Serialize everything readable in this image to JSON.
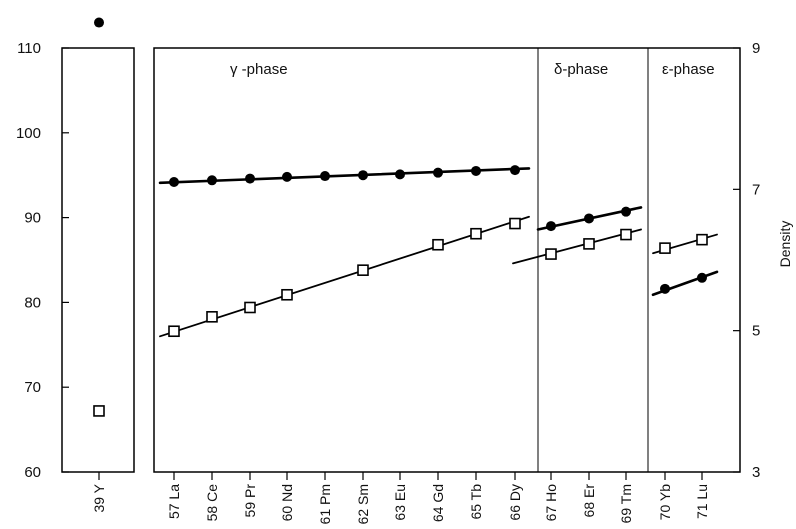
{
  "chart_data": {
    "type": "scatter",
    "left_axis": {
      "ticks": [
        60,
        70,
        80,
        90,
        100,
        110
      ],
      "ylim": [
        60,
        110
      ]
    },
    "right_axis": {
      "label": "Density",
      "ticks": [
        3,
        5,
        7,
        9
      ],
      "ylim": [
        3,
        9
      ]
    },
    "categories": [
      "39 Y",
      "57 La",
      "58 Ce",
      "59 Pr",
      "60 Nd",
      "61 Pm",
      "62 Sm",
      "63 Eu",
      "64 Gd",
      "65 Tb",
      "66 Dy",
      "67 Ho",
      "68 Er",
      "69 Tm",
      "70 Yb",
      "71 Lu"
    ],
    "phases": [
      "γ -phase",
      "δ-phase",
      "ε-phase"
    ],
    "series": [
      {
        "marker": "filled-circle",
        "points": [
          {
            "x": "39 Y",
            "y": 113
          },
          {
            "x": "57 La",
            "y": 94.2
          },
          {
            "x": "58 Ce",
            "y": 94.4
          },
          {
            "x": "59 Pr",
            "y": 94.6
          },
          {
            "x": "60 Nd",
            "y": 94.8
          },
          {
            "x": "61 Pm",
            "y": 94.9
          },
          {
            "x": "62 Sm",
            "y": 95.0
          },
          {
            "x": "63 Eu",
            "y": 95.1
          },
          {
            "x": "64 Gd",
            "y": 95.3
          },
          {
            "x": "65 Tb",
            "y": 95.5
          },
          {
            "x": "66 Dy",
            "y": 95.6
          },
          {
            "x": "67 Ho",
            "y": 89.0
          },
          {
            "x": "68 Er",
            "y": 89.9
          },
          {
            "x": "69 Tm",
            "y": 90.7
          },
          {
            "x": "70 Yb",
            "y": 81.6
          },
          {
            "x": "71 Lu",
            "y": 82.9
          }
        ]
      },
      {
        "marker": "open-square",
        "points": [
          {
            "x": "39 Y",
            "y": 67.2
          },
          {
            "x": "57 La",
            "y": 76.6
          },
          {
            "x": "58 Ce",
            "y": 78.3
          },
          {
            "x": "59 Pr",
            "y": 79.4
          },
          {
            "x": "60 Nd",
            "y": 80.9
          },
          {
            "x": "62 Sm",
            "y": 83.8
          },
          {
            "x": "64 Gd",
            "y": 86.8
          },
          {
            "x": "65 Tb",
            "y": 88.1
          },
          {
            "x": "66 Dy",
            "y": 89.3
          },
          {
            "x": "67 Ho",
            "y": 85.7
          },
          {
            "x": "68 Er",
            "y": 86.9
          },
          {
            "x": "69 Tm",
            "y": 88.0
          },
          {
            "x": "70 Yb",
            "y": 86.4
          },
          {
            "x": "71 Lu",
            "y": 87.4
          }
        ]
      }
    ],
    "trend_lines": [
      {
        "marker": "filled-circle",
        "from": {
          "x": "57 La",
          "y": 94.1
        },
        "to": {
          "x": "66 Dy",
          "y": 95.8
        }
      },
      {
        "marker": "open-square",
        "from": {
          "x": "57 La",
          "y": 76.0
        },
        "to": {
          "x": "66 Dy",
          "y": 90.1
        }
      },
      {
        "marker": "filled-circle",
        "from": {
          "x": "67 Ho",
          "y": 88.6
        },
        "to": {
          "x": "69 Tm",
          "y": 91.2
        }
      },
      {
        "marker": "open-square",
        "from": {
          "x": "67 Ho",
          "y": 84.6
        },
        "to": {
          "x": "69 Tm",
          "y": 88.6
        }
      },
      {
        "marker": "filled-circle",
        "from": {
          "x": "70 Yb",
          "y": 80.9
        },
        "to": {
          "x": "71 Lu",
          "y": 83.6
        }
      },
      {
        "marker": "open-square",
        "from": {
          "x": "70 Yb",
          "y": 85.8
        },
        "to": {
          "x": "71 Lu",
          "y": 88.0
        }
      }
    ],
    "grid": false
  }
}
